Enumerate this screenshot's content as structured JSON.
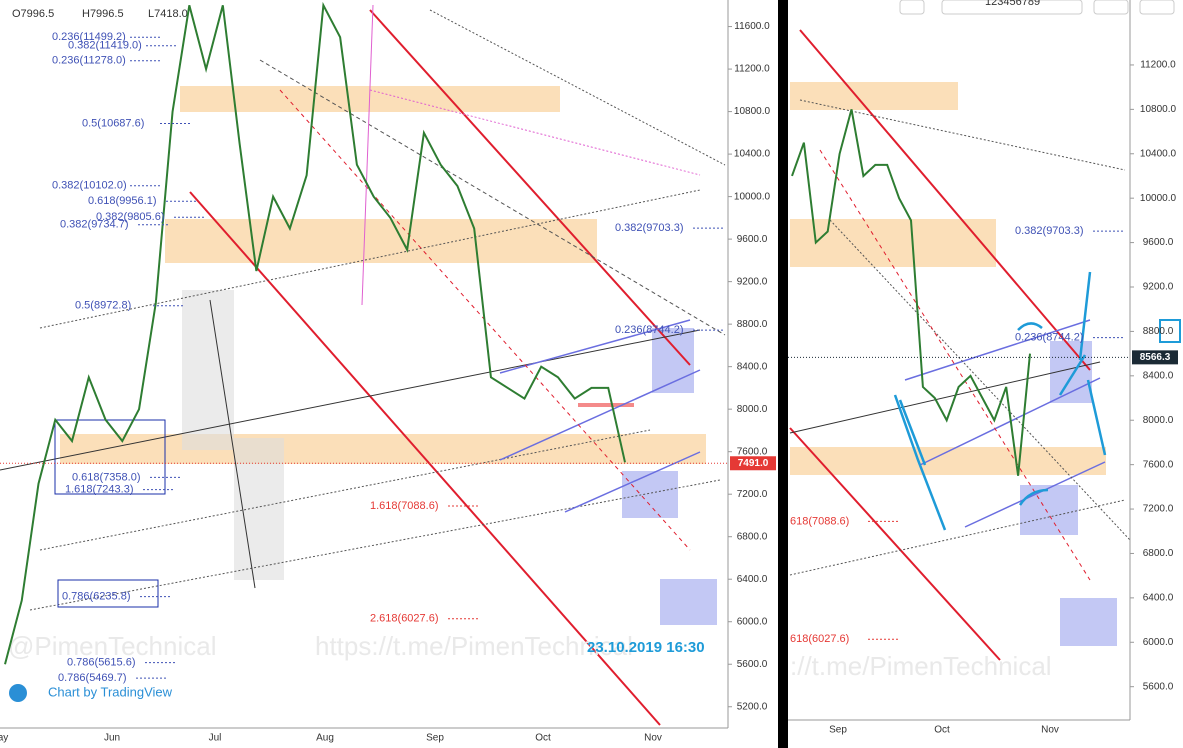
{
  "header": {
    "open": "O7996.5",
    "high": "H7996.5",
    "low": "L7418.0",
    "toolbar_text": "123456789"
  },
  "watermarks": {
    "author": "@PimenTechnical",
    "link": "https://t.me/PimenTechnical",
    "link_right": "://t.me/PimenTechnical",
    "timestamp": "23.10.2019 16:30",
    "branding": "Chart by TradingView"
  },
  "chart_data": [
    {
      "type": "line",
      "color": "#2e7d32",
      "values": [
        5600,
        6200,
        7300,
        7900,
        7700,
        8300,
        7900,
        7700,
        8000,
        9000,
        10800,
        11800,
        11200,
        11800,
        10500,
        9300,
        10000,
        9700,
        10200,
        11800,
        11500,
        10300,
        10000,
        9800,
        9500,
        10600,
        10300,
        10100,
        9700,
        8300,
        8200,
        8100,
        8400,
        8300,
        8100,
        8200,
        8200,
        7500
      ],
      "x_labels": [
        "ay",
        "Jun",
        "Jul",
        "Aug",
        "Sep",
        "Oct",
        "Nov"
      ],
      "ylim": [
        5000,
        11850
      ],
      "yticks": [
        {
          "value": 5200,
          "label": "5200.0"
        },
        {
          "value": 5600,
          "label": "5600.0"
        },
        {
          "value": 6000,
          "label": "6000.0"
        },
        {
          "value": 6400,
          "label": "6400.0"
        },
        {
          "value": 6800,
          "label": "6800.0"
        },
        {
          "value": 7200,
          "label": "7200.0"
        },
        {
          "value": 7600,
          "label": "7600.0"
        },
        {
          "value": 8000,
          "label": "8000.0"
        },
        {
          "value": 8400,
          "label": "8400.0"
        },
        {
          "value": 8800,
          "label": "8800.0"
        },
        {
          "value": 9200,
          "label": "9200.0"
        },
        {
          "value": 9600,
          "label": "9600.0"
        },
        {
          "value": 10000,
          "label": "10000.0"
        },
        {
          "value": 10400,
          "label": "10400.0"
        },
        {
          "value": 10800,
          "label": "10800.0"
        },
        {
          "value": 11200,
          "label": "11200.0"
        },
        {
          "value": 11600,
          "label": "11600.0"
        }
      ],
      "last_price": {
        "value": 7491.0,
        "label": "7491.0",
        "color": "#e53935"
      },
      "annotations": [
        {
          "value": 11499.2,
          "label": "0.236(11499.2)",
          "color": "#3f51b5"
        },
        {
          "value": 11419.0,
          "label": "0.382(11419.0)",
          "color": "#3f51b5"
        },
        {
          "value": 11278.0,
          "label": "0.236(11278.0)",
          "color": "#3f51b5"
        },
        {
          "value": 10687.6,
          "label": "0.5(10687.6)",
          "color": "#3f51b5"
        },
        {
          "value": 10102.0,
          "label": "0.382(10102.0)",
          "color": "#3f51b5"
        },
        {
          "value": 9956.1,
          "label": "0.618(9956.1)",
          "color": "#3f51b5"
        },
        {
          "value": 9805.6,
          "label": "0.382(9805.6)",
          "color": "#3f51b5"
        },
        {
          "value": 9734.7,
          "label": "0.382(9734.7)",
          "color": "#3f51b5"
        },
        {
          "value": 9703.3,
          "label": "0.382(9703.3)",
          "color": "#3f51b5"
        },
        {
          "value": 8972.8,
          "label": "0.5(8972.8)",
          "color": "#3f51b5"
        },
        {
          "value": 8744.2,
          "label": "0.236(8744.2)",
          "color": "#3f51b5"
        },
        {
          "value": 7358.0,
          "label": "0.618(7358.0)",
          "color": "#3f51b5"
        },
        {
          "value": 7243.3,
          "label": "1.618(7243.3)",
          "color": "#3f51b5"
        },
        {
          "value": 7088.6,
          "label": "1.618(7088.6)",
          "color": "#e53935"
        },
        {
          "value": 6235.8,
          "label": "0.786(6235.8)",
          "color": "#3f51b5"
        },
        {
          "value": 6027.6,
          "label": "2.618(6027.6)",
          "color": "#e53935"
        },
        {
          "value": 5615.6,
          "label": "0.786(5615.6)",
          "color": "#3f51b5"
        },
        {
          "value": 5469.7,
          "label": "0.786(5469.7)",
          "color": "#3f51b5"
        }
      ]
    },
    {
      "type": "line",
      "color": "#2e7d32",
      "values": [
        10200,
        10500,
        9600,
        9700,
        10400,
        10800,
        10200,
        10300,
        10300,
        10000,
        9800,
        8300,
        8200,
        8000,
        8300,
        8400,
        8200,
        8000,
        8300,
        7500,
        8600
      ],
      "x_labels": [
        "Sep",
        "Oct",
        "Nov"
      ],
      "ylim": [
        5300,
        11785
      ],
      "yticks": [
        {
          "value": 5600,
          "label": "5600.0"
        },
        {
          "value": 6000,
          "label": "6000.0"
        },
        {
          "value": 6400,
          "label": "6400.0"
        },
        {
          "value": 6800,
          "label": "6800.0"
        },
        {
          "value": 7200,
          "label": "7200.0"
        },
        {
          "value": 7600,
          "label": "7600.0"
        },
        {
          "value": 8000,
          "label": "8000.0"
        },
        {
          "value": 8400,
          "label": "8400.0"
        },
        {
          "value": 8800,
          "label": "8800.0"
        },
        {
          "value": 9200,
          "label": "9200.0"
        },
        {
          "value": 9600,
          "label": "9600.0"
        },
        {
          "value": 10000,
          "label": "10000.0"
        },
        {
          "value": 10400,
          "label": "10400.0"
        },
        {
          "value": 10800,
          "label": "10800.0"
        },
        {
          "value": 11200,
          "label": "11200.0"
        }
      ],
      "last_price": {
        "value": 8566.3,
        "label": "8566.3",
        "color": "#1b2a35"
      },
      "annotations": [
        {
          "value": 9703.3,
          "label": "0.382(9703.3)",
          "color": "#3f51b5"
        },
        {
          "value": 8744.2,
          "label": "0.236(8744.2)",
          "color": "#3f51b5"
        },
        {
          "value": 7088.6,
          "label": "618(7088.6)",
          "color": "#e53935"
        },
        {
          "value": 6027.6,
          "label": "618(6027.6)",
          "color": "#e53935"
        }
      ]
    }
  ]
}
